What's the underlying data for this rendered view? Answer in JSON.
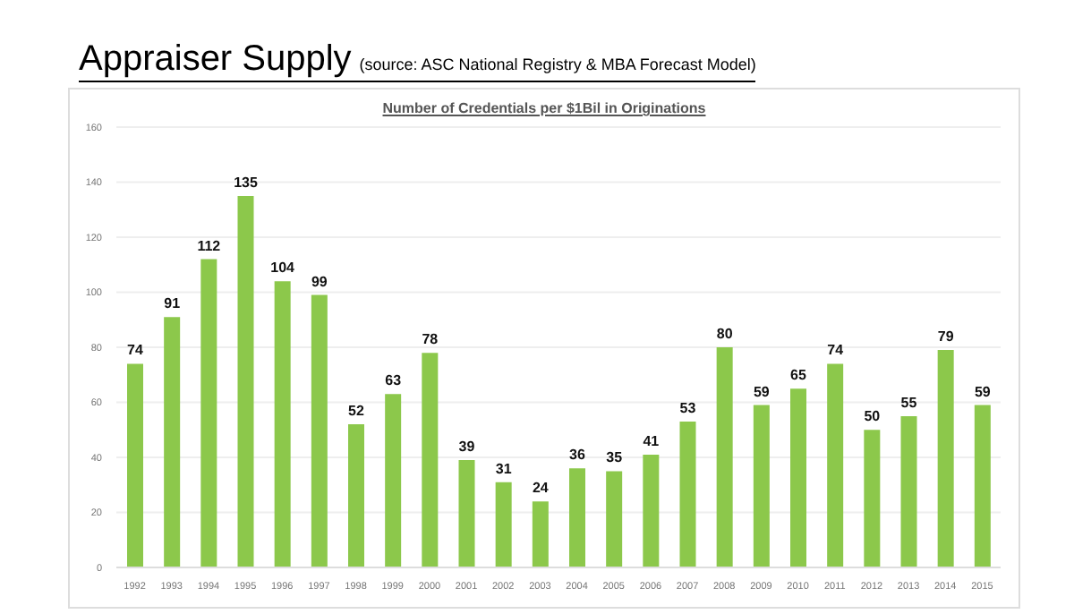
{
  "chart_data": {
    "type": "bar",
    "title": "Appraiser Supply",
    "subtitle": "(source: ASC National Registry & MBA Forecast Model)",
    "annotations": [
      "Number of Credentials per $1Bil in Originations"
    ],
    "categories": [
      "1992",
      "1993",
      "1994",
      "1995",
      "1996",
      "1997",
      "1998",
      "1999",
      "2000",
      "2001",
      "2002",
      "2003",
      "2004",
      "2005",
      "2006",
      "2007",
      "2008",
      "2009",
      "2010",
      "2011",
      "2012",
      "2013",
      "2014",
      "2015"
    ],
    "values": [
      74,
      91,
      112,
      135,
      104,
      99,
      52,
      63,
      78,
      39,
      31,
      24,
      36,
      35,
      41,
      53,
      80,
      59,
      65,
      74,
      50,
      55,
      79,
      59
    ],
    "color": "#8cc84b",
    "ylim": [
      0,
      160
    ],
    "yticks": [
      0,
      20,
      40,
      60,
      80,
      100,
      120,
      140,
      160
    ],
    "grid": "y",
    "data_labels": true
  }
}
